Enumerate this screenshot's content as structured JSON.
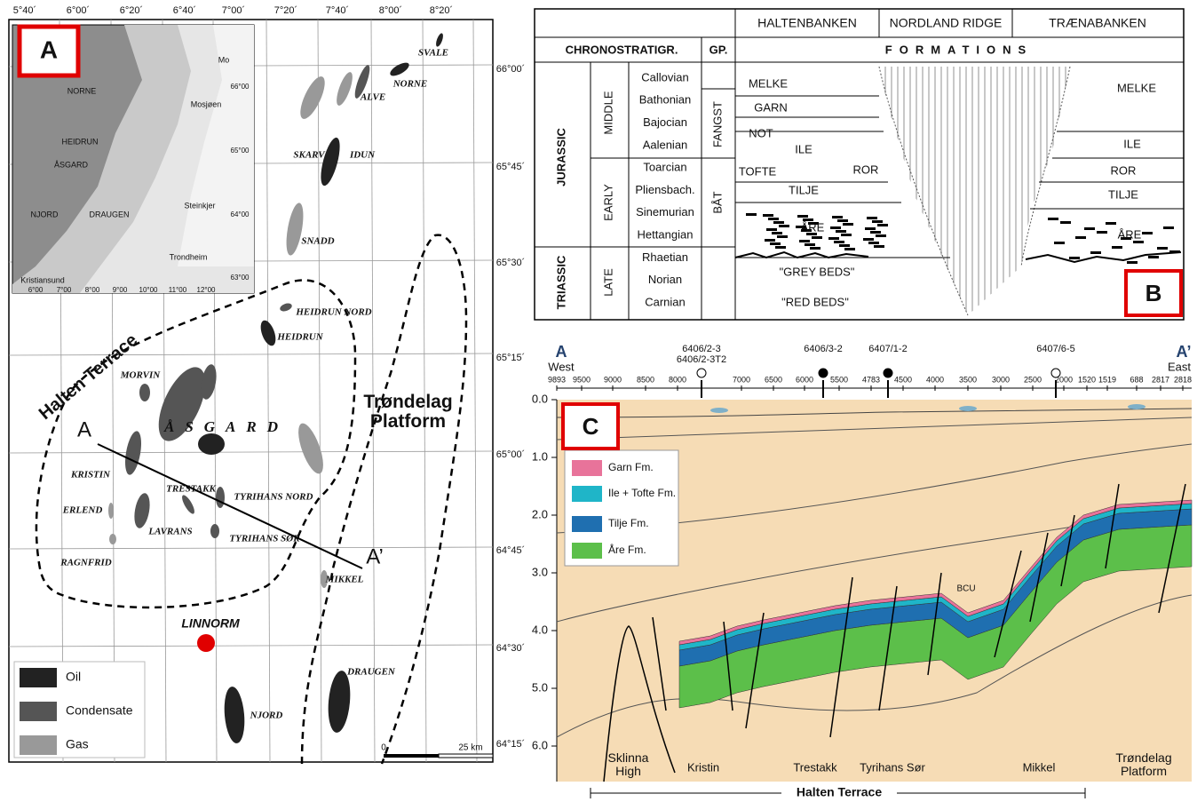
{
  "panel_a": {
    "letter": "A",
    "lon_labels": [
      "5°40´",
      "6°00´",
      "6°20´",
      "6°40´",
      "7°00´",
      "7°20´",
      "7°40´",
      "8°00´",
      "8°20´"
    ],
    "lat_labels": [
      "66°00´",
      "65°45´",
      "65°30´",
      "65°15´",
      "65°00´",
      "64°45´",
      "64°30´",
      "64°15´"
    ],
    "inset": {
      "places": [
        "Mo",
        "Mosjøen",
        "NORNE",
        "HEIDRUN",
        "ÅSGARD",
        "NJORD",
        "DRAUGEN",
        "Steinkjer",
        "Trondheim",
        "Kristiansund"
      ],
      "lat_labels": [
        "66°00",
        "65°00",
        "64°00",
        "63°00"
      ],
      "lon_labels": [
        "6°00",
        "7°00",
        "8°00",
        "9°00",
        "10°00",
        "11°00",
        "12°00"
      ]
    },
    "fields": [
      "SVALE",
      "NORNE",
      "ALVE",
      "SKARV",
      "IDUN",
      "SNADD",
      "HEIDRUN NORD",
      "HEIDRUN",
      "MORVIN",
      "ÅSGARD",
      "KRISTIN",
      "TRESTAKK",
      "TYRIHANS NORD",
      "ERLEND",
      "LAVRANS",
      "TYRIHANS SØR",
      "RAGNFRID",
      "MIKKEL",
      "DRAUGEN",
      "NJORD"
    ],
    "well": "LINNORM",
    "regions": [
      "Halten Terrace",
      "Trøndelag Platform"
    ],
    "section_ends": [
      "A",
      "A’"
    ],
    "legend": [
      "Oil",
      "Condensate",
      "Gas"
    ],
    "scale": [
      "0",
      "25 km"
    ]
  },
  "panel_b": {
    "letter": "B",
    "areas": [
      "HALTENBANKEN",
      "NORDLAND RIDGE",
      "TRÆNABANKEN"
    ],
    "headers": [
      "CHRONOSTRATIGR.",
      "GP.",
      "FORMATIONS"
    ],
    "periods": [
      "JURASSIC",
      "TRIASSIC"
    ],
    "epochs": [
      "MIDDLE",
      "EARLY",
      "LATE"
    ],
    "stages": [
      "Callovian",
      "Bathonian",
      "Bajocian",
      "Aalenian",
      "Toarcian",
      "Pliensbach.",
      "Sinemurian",
      "Hettangian",
      "Rhaetian",
      "Norian",
      "Carnian"
    ],
    "groups": [
      "FANGST",
      "BÅT"
    ],
    "haltenbanken": [
      "MELKE",
      "GARN",
      "NOT",
      "ILE",
      "TOFTE",
      "ROR",
      "TILJE",
      "ÅRE",
      "\"GREY BEDS\"",
      "\"RED BEDS\""
    ],
    "traenabanken": [
      "MELKE",
      "ILE",
      "ROR",
      "TILJE",
      "ÅRE"
    ]
  },
  "panel_c": {
    "letter": "C",
    "ends": [
      "A",
      "West",
      "A’",
      "East"
    ],
    "wells": [
      "6406/2-3",
      "6406/2-3T2",
      "6406/3-2",
      "6407/1-2",
      "6407/6-5"
    ],
    "distances": [
      "9893",
      "9500",
      "9000",
      "8500",
      "8000",
      "7000",
      "6500",
      "6000",
      "5500",
      "4783",
      "4500",
      "4000",
      "3500",
      "3000",
      "2500",
      "2000",
      "1520",
      "1519",
      "688",
      "2817",
      "2818"
    ],
    "depth_ticks": [
      "0.0",
      "1.0",
      "2.0",
      "3.0",
      "4.0",
      "5.0",
      "6.0"
    ],
    "legend": [
      "Garn Fm.",
      "Ile + Tofte Fm.",
      "Tilje Fm.",
      "Åre Fm."
    ],
    "bcu": "BCU",
    "locations": [
      "Sklinna High",
      "Kristin",
      "Trestakk",
      "Tyrihans Sør",
      "Mikkel",
      "Trøndelag Platform"
    ],
    "terrace": "Halten Terrace"
  }
}
